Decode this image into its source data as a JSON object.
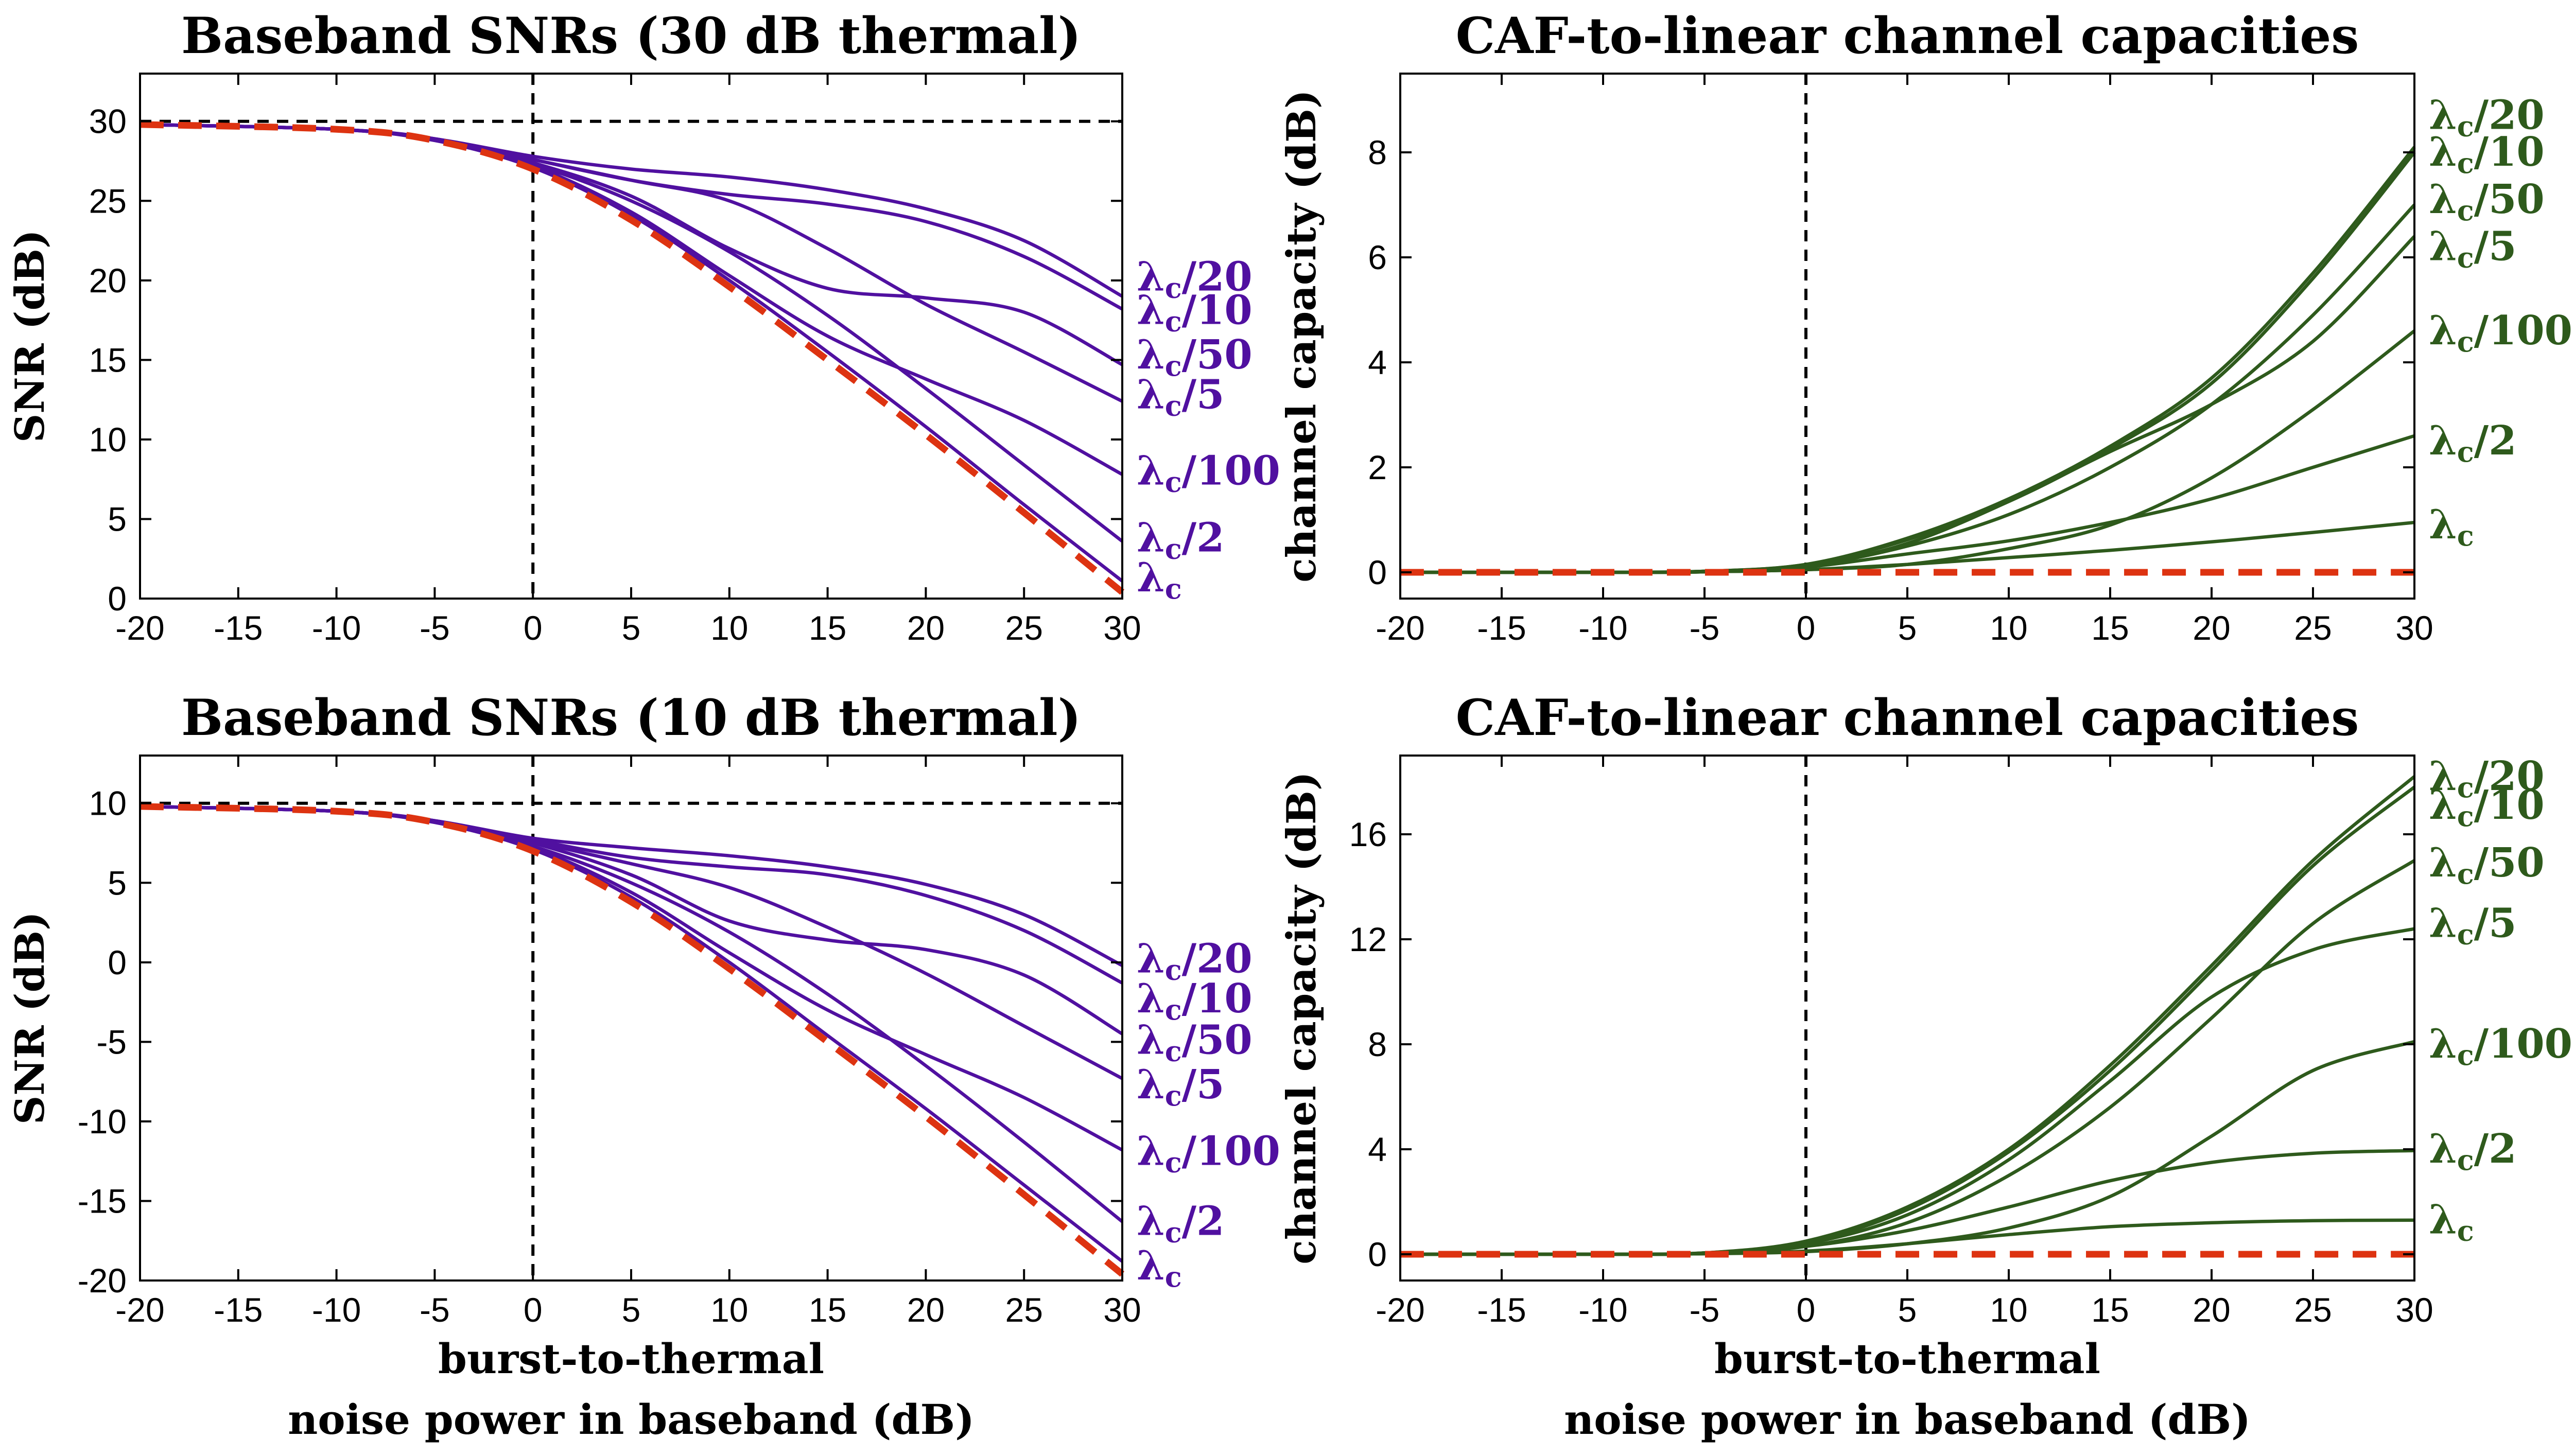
{
  "figure": {
    "xlabel_line1": "burst-to-thermal",
    "xlabel_line2": "noise power in baseband (dB)"
  },
  "colors": {
    "snr_curve": "#5010a0",
    "capacity_curve": "#2e5a1c",
    "baseline": "#dd3311",
    "reference": "#000000"
  },
  "label_lambda": "λ",
  "label_sub": "c",
  "chart_data": [
    {
      "id": "snr30",
      "type": "line",
      "title": "Baseband SNRs (30 dB thermal)",
      "xlabel": "",
      "ylabel": "SNR (dB)",
      "xlim": [
        -20,
        30
      ],
      "ylim": [
        0,
        33
      ],
      "xticks": [
        -20,
        -15,
        -10,
        -5,
        0,
        5,
        10,
        15,
        20,
        25,
        30
      ],
      "yticks": [
        0,
        5,
        10,
        15,
        20,
        25,
        30
      ],
      "hline": 30,
      "vline": 0,
      "baseline": {
        "x": [
          -20,
          -10,
          -5,
          0,
          5,
          10,
          15,
          20,
          25,
          30
        ],
        "y": [
          29.8,
          29.5,
          28.8,
          27.0,
          23.8,
          19.6,
          15.0,
          10.3,
          5.4,
          0.4
        ]
      },
      "series": [
        {
          "name": "λc/20",
          "x": [
            -20,
            -10,
            -5,
            0,
            5,
            10,
            15,
            20,
            25,
            30
          ],
          "y": [
            29.8,
            29.5,
            28.9,
            27.8,
            27.0,
            26.5,
            25.7,
            24.5,
            22.5,
            19.0
          ]
        },
        {
          "name": "λc/10",
          "x": [
            -20,
            -10,
            -5,
            0,
            5,
            10,
            15,
            20,
            25,
            30
          ],
          "y": [
            29.8,
            29.5,
            28.9,
            27.6,
            26.3,
            25.4,
            24.8,
            23.7,
            21.5,
            18.2
          ]
        },
        {
          "name": "λc/50",
          "x": [
            -20,
            -10,
            -5,
            0,
            5,
            10,
            15,
            20,
            25,
            30
          ],
          "y": [
            29.8,
            29.5,
            28.9,
            27.4,
            25.3,
            22.0,
            19.5,
            18.9,
            18.0,
            14.7
          ]
        },
        {
          "name": "λc/5",
          "x": [
            -20,
            -10,
            -5,
            0,
            5,
            10,
            15,
            20,
            25,
            30
          ],
          "y": [
            29.8,
            29.5,
            28.9,
            27.6,
            26.3,
            25.0,
            22.0,
            18.5,
            15.5,
            12.4
          ]
        },
        {
          "name": "λc/100",
          "x": [
            -20,
            -10,
            -5,
            0,
            5,
            10,
            15,
            20,
            25,
            30
          ],
          "y": [
            29.8,
            29.5,
            28.8,
            27.2,
            24.3,
            20.3,
            16.5,
            13.8,
            11.2,
            7.8
          ]
        },
        {
          "name": "λc/2",
          "x": [
            -20,
            -10,
            -5,
            0,
            5,
            10,
            15,
            20,
            25,
            30
          ],
          "y": [
            29.8,
            29.5,
            28.8,
            27.3,
            25.0,
            21.8,
            17.8,
            13.2,
            8.4,
            3.6
          ]
        },
        {
          "name": "λc",
          "x": [
            -20,
            -10,
            -5,
            0,
            5,
            10,
            15,
            20,
            25,
            30
          ],
          "y": [
            29.8,
            29.5,
            28.8,
            27.1,
            24.1,
            20.0,
            15.5,
            10.8,
            5.9,
            1.1
          ]
        }
      ]
    },
    {
      "id": "cap30",
      "type": "line",
      "title": "CAF-to-linear channel capacities",
      "xlabel": "",
      "ylabel": "channel capacity (dB)",
      "xlim": [
        -20,
        30
      ],
      "ylim": [
        -0.5,
        9.5
      ],
      "xticks": [
        -20,
        -15,
        -10,
        -5,
        0,
        5,
        10,
        15,
        20,
        25,
        30
      ],
      "yticks": [
        0,
        2,
        4,
        6,
        8
      ],
      "vline": 0,
      "baseline": {
        "x": [
          -20,
          30
        ],
        "y": [
          0,
          0
        ]
      },
      "series": [
        {
          "name": "λc/20",
          "x": [
            -20,
            -10,
            -5,
            0,
            5,
            10,
            15,
            20,
            25,
            30
          ],
          "y": [
            0,
            0,
            0.02,
            0.15,
            0.65,
            1.4,
            2.4,
            3.7,
            5.7,
            8.1
          ]
        },
        {
          "name": "λc/10",
          "x": [
            -20,
            -10,
            -5,
            0,
            5,
            10,
            15,
            20,
            25,
            30
          ],
          "y": [
            0,
            0,
            0.02,
            0.15,
            0.62,
            1.35,
            2.35,
            3.6,
            5.6,
            8.0
          ]
        },
        {
          "name": "λc/50",
          "x": [
            -20,
            -10,
            -5,
            0,
            5,
            10,
            15,
            20,
            25,
            30
          ],
          "y": [
            0,
            0,
            0.01,
            0.12,
            0.5,
            1.1,
            2.0,
            3.2,
            4.9,
            7.0
          ]
        },
        {
          "name": "λc/5",
          "x": [
            -20,
            -10,
            -5,
            0,
            5,
            10,
            15,
            20,
            25,
            30
          ],
          "y": [
            0,
            0,
            0.02,
            0.12,
            0.55,
            1.35,
            2.3,
            3.2,
            4.4,
            6.4
          ]
        },
        {
          "name": "λc/100",
          "x": [
            -20,
            -10,
            -5,
            0,
            5,
            10,
            15,
            20,
            25,
            30
          ],
          "y": [
            0,
            0,
            0.01,
            0.05,
            0.15,
            0.45,
            0.9,
            1.8,
            3.1,
            4.6
          ]
        },
        {
          "name": "λc/2",
          "x": [
            -20,
            -10,
            -5,
            0,
            5,
            10,
            15,
            20,
            25,
            30
          ],
          "y": [
            0,
            0,
            0.01,
            0.1,
            0.35,
            0.6,
            0.95,
            1.4,
            2.0,
            2.6
          ]
        },
        {
          "name": "λc",
          "x": [
            -20,
            -10,
            -5,
            0,
            5,
            10,
            15,
            20,
            25,
            30
          ],
          "y": [
            0,
            0,
            0.01,
            0.05,
            0.15,
            0.28,
            0.42,
            0.58,
            0.76,
            0.95
          ]
        }
      ]
    },
    {
      "id": "snr10",
      "type": "line",
      "title": "Baseband SNRs (10 dB thermal)",
      "xlabel": "burst-to-thermal",
      "ylabel": "SNR (dB)",
      "xlim": [
        -20,
        30
      ],
      "ylim": [
        -20,
        13
      ],
      "xticks": [
        -20,
        -15,
        -10,
        -5,
        0,
        5,
        10,
        15,
        20,
        25,
        30
      ],
      "yticks": [
        -20,
        -15,
        -10,
        -5,
        0,
        5,
        10
      ],
      "hline": 10,
      "vline": 0,
      "baseline": {
        "x": [
          -20,
          -10,
          -5,
          0,
          5,
          10,
          15,
          20,
          25,
          30
        ],
        "y": [
          9.8,
          9.5,
          8.8,
          7.0,
          3.8,
          -0.4,
          -5.0,
          -9.7,
          -14.6,
          -19.6
        ]
      },
      "series": [
        {
          "name": "λc/20",
          "x": [
            -20,
            -10,
            -5,
            0,
            5,
            10,
            15,
            20,
            25,
            30
          ],
          "y": [
            9.8,
            9.5,
            8.9,
            7.8,
            7.2,
            6.7,
            6.0,
            4.9,
            3.0,
            -0.2
          ]
        },
        {
          "name": "λc/10",
          "x": [
            -20,
            -10,
            -5,
            0,
            5,
            10,
            15,
            20,
            25,
            30
          ],
          "y": [
            9.8,
            9.5,
            8.9,
            7.7,
            6.6,
            6.0,
            5.5,
            4.2,
            2.0,
            -1.3
          ]
        },
        {
          "name": "λc/50",
          "x": [
            -20,
            -10,
            -5,
            0,
            5,
            10,
            15,
            20,
            25,
            30
          ],
          "y": [
            9.8,
            9.5,
            8.9,
            7.5,
            5.5,
            2.6,
            1.4,
            0.8,
            -0.8,
            -4.5
          ]
        },
        {
          "name": "λc/5",
          "x": [
            -20,
            -10,
            -5,
            0,
            5,
            10,
            15,
            20,
            25,
            30
          ],
          "y": [
            9.8,
            9.5,
            8.9,
            7.6,
            6.2,
            4.7,
            2.2,
            -0.7,
            -4.0,
            -7.3
          ]
        },
        {
          "name": "λc/100",
          "x": [
            -20,
            -10,
            -5,
            0,
            5,
            10,
            15,
            20,
            25,
            30
          ],
          "y": [
            9.8,
            9.5,
            8.8,
            7.2,
            4.4,
            0.6,
            -3.0,
            -5.8,
            -8.5,
            -11.8
          ]
        },
        {
          "name": "λc/2",
          "x": [
            -20,
            -10,
            -5,
            0,
            5,
            10,
            15,
            20,
            25,
            30
          ],
          "y": [
            9.8,
            9.5,
            8.8,
            7.3,
            5.0,
            1.9,
            -2.0,
            -6.5,
            -11.3,
            -16.3
          ]
        },
        {
          "name": "λc",
          "x": [
            -20,
            -10,
            -5,
            0,
            5,
            10,
            15,
            20,
            25,
            30
          ],
          "y": [
            9.8,
            9.5,
            8.8,
            7.1,
            4.1,
            0.0,
            -4.6,
            -9.2,
            -14.0,
            -18.8
          ]
        }
      ]
    },
    {
      "id": "cap10",
      "type": "line",
      "title": "CAF-to-linear channel capacities",
      "xlabel": "burst-to-thermal",
      "ylabel": "channel capacity (dB)",
      "xlim": [
        -20,
        30
      ],
      "ylim": [
        -1,
        19
      ],
      "xticks": [
        -20,
        -15,
        -10,
        -5,
        0,
        5,
        10,
        15,
        20,
        25,
        30
      ],
      "yticks": [
        0,
        4,
        8,
        12,
        16
      ],
      "vline": 0,
      "baseline": {
        "x": [
          -20,
          30
        ],
        "y": [
          0,
          0
        ]
      },
      "series": [
        {
          "name": "λc/20",
          "x": [
            -20,
            -10,
            -5,
            0,
            5,
            10,
            15,
            20,
            25,
            30
          ],
          "y": [
            0,
            0,
            0.05,
            0.5,
            1.8,
            4.0,
            7.2,
            11.0,
            15.0,
            18.2
          ]
        },
        {
          "name": "λc/10",
          "x": [
            -20,
            -10,
            -5,
            0,
            5,
            10,
            15,
            20,
            25,
            30
          ],
          "y": [
            0,
            0,
            0.05,
            0.45,
            1.7,
            3.9,
            7.0,
            10.8,
            14.8,
            17.8
          ]
        },
        {
          "name": "λc/50",
          "x": [
            -20,
            -10,
            -5,
            0,
            5,
            10,
            15,
            20,
            25,
            30
          ],
          "y": [
            0,
            0,
            0.03,
            0.3,
            1.2,
            3.0,
            5.6,
            9.0,
            12.6,
            15.0
          ]
        },
        {
          "name": "λc/5",
          "x": [
            -20,
            -10,
            -5,
            0,
            5,
            10,
            15,
            20,
            25,
            30
          ],
          "y": [
            0,
            0,
            0.05,
            0.4,
            1.5,
            3.6,
            6.6,
            9.8,
            11.6,
            12.4
          ]
        },
        {
          "name": "λc/100",
          "x": [
            -20,
            -10,
            -5,
            0,
            5,
            10,
            15,
            20,
            25,
            30
          ],
          "y": [
            0,
            0,
            0.02,
            0.1,
            0.4,
            1.0,
            2.2,
            4.5,
            7.0,
            8.1
          ]
        },
        {
          "name": "λc/2",
          "x": [
            -20,
            -10,
            -5,
            0,
            5,
            10,
            15,
            20,
            25,
            30
          ],
          "y": [
            0,
            0,
            0.03,
            0.3,
            0.9,
            1.8,
            2.8,
            3.5,
            3.85,
            3.95
          ]
        },
        {
          "name": "λc",
          "x": [
            -20,
            -10,
            -5,
            0,
            5,
            10,
            15,
            20,
            25,
            30
          ],
          "y": [
            0,
            0,
            0.02,
            0.12,
            0.4,
            0.75,
            1.05,
            1.2,
            1.28,
            1.3
          ]
        }
      ]
    }
  ],
  "label_positions": [
    {
      "chart": "snr30",
      "labels": [
        {
          "name": "λc/20",
          "y": 20.2
        },
        {
          "name": "λc/10",
          "y": 18.1
        },
        {
          "name": "λc/50",
          "y": 15.3
        },
        {
          "name": "λc/5",
          "y": 12.8
        },
        {
          "name": "λc/100",
          "y": 8.0
        },
        {
          "name": "λc/2",
          "y": 3.8
        },
        {
          "name": "λc",
          "y": 1.3
        }
      ]
    },
    {
      "chart": "cap30",
      "labels": [
        {
          "name": "λc/20",
          "y": 8.7
        },
        {
          "name": "λc/10",
          "y": 8.0
        },
        {
          "name": "λc/50",
          "y": 7.1
        },
        {
          "name": "λc/5",
          "y": 6.2
        },
        {
          "name": "λc/100",
          "y": 4.6
        },
        {
          "name": "λc/2",
          "y": 2.5
        },
        {
          "name": "λc",
          "y": 0.9
        }
      ]
    },
    {
      "chart": "snr10",
      "labels": [
        {
          "name": "λc/20",
          "y": 0.2
        },
        {
          "name": "λc/10",
          "y": -2.3
        },
        {
          "name": "λc/50",
          "y": -4.9
        },
        {
          "name": "λc/5",
          "y": -7.7
        },
        {
          "name": "λc/100",
          "y": -11.9
        },
        {
          "name": "λc/2",
          "y": -16.3
        },
        {
          "name": "λc",
          "y": -19.1
        }
      ]
    },
    {
      "chart": "cap10",
      "labels": [
        {
          "name": "λc/20",
          "y": 18.2
        },
        {
          "name": "λc/10",
          "y": 17.1
        },
        {
          "name": "λc/50",
          "y": 14.9
        },
        {
          "name": "λc/5",
          "y": 12.6
        },
        {
          "name": "λc/100",
          "y": 8.0
        },
        {
          "name": "λc/2",
          "y": 4.0
        },
        {
          "name": "λc",
          "y": 1.3
        }
      ]
    }
  ]
}
